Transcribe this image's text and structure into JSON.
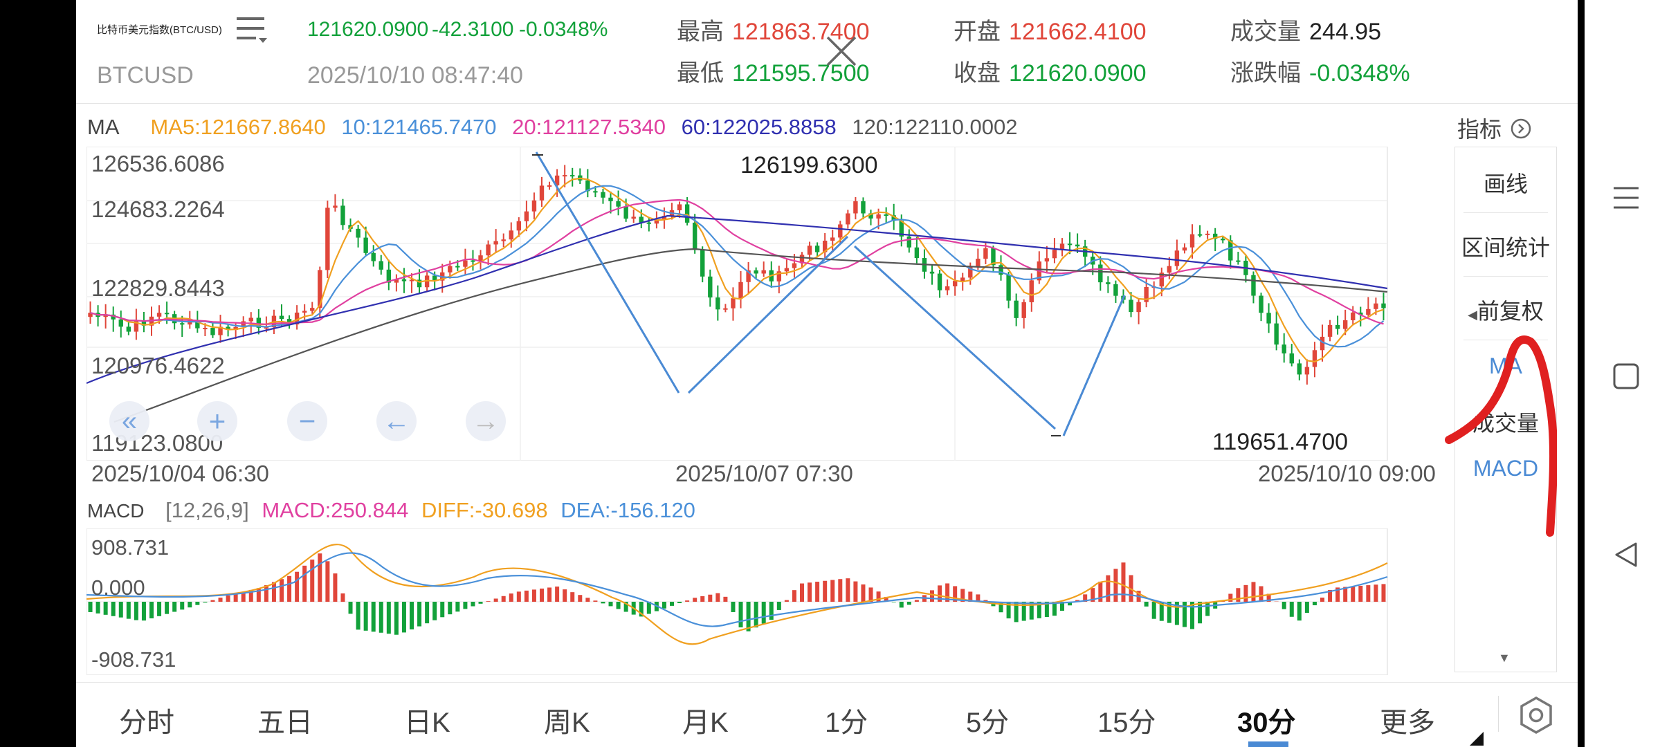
{
  "header": {
    "instrument_name": "比特币美元指数(BTC/USD)",
    "symbol": "BTCUSD",
    "last_price": "121620.0900",
    "change": "-42.3100",
    "change_pct": "-0.0348%",
    "datetime": "2025/10/10 08:47:40",
    "stats": [
      {
        "label": "最高",
        "value": "121863.7400",
        "color": "#e0463a"
      },
      {
        "label": "最低",
        "value": "121595.7500",
        "color": "#12a13a"
      },
      {
        "label": "开盘",
        "value": "121662.4100",
        "color": "#e0463a"
      },
      {
        "label": "收盘",
        "value": "121620.0900",
        "color": "#12a13a"
      },
      {
        "label": "成交量",
        "value": "244.95",
        "color": "#222222"
      },
      {
        "label": "涨跌幅",
        "value": "-0.0348%",
        "color": "#12a13a"
      }
    ]
  },
  "ma_legend": {
    "label": "MA",
    "ma5": "MA5:121667.8640",
    "ma10": "10:121465.7470",
    "ma20": "20:121127.5340",
    "ma60": "60:122025.8858",
    "ma120": "120:122110.0002"
  },
  "colors": {
    "up": "#e0463a",
    "down": "#12a13a",
    "ma5": "#f0a020",
    "ma10": "#4a90d9",
    "ma20": "#e040a0",
    "ma60": "#3030b0",
    "ma120": "#555555",
    "trend": "#4a8ad4",
    "annotation": "#e02020"
  },
  "price_axis": [
    "126536.6086",
    "124683.2264",
    "122829.8443",
    "120976.4622",
    "119123.0800"
  ],
  "time_axis": [
    "2025/10/04 06:30",
    "2025/10/07 07:30",
    "2025/10/10 09:00"
  ],
  "extremes": {
    "high": "126199.6300",
    "low": "119651.4700"
  },
  "macd": {
    "label": "MACD",
    "params": "[12,26,9]",
    "macd": "MACD:250.844",
    "diff": "DIFF:-30.698",
    "dea": "DEA:-156.120",
    "axis": [
      "908.731",
      "0.000",
      "-908.731"
    ]
  },
  "indicator_panel": {
    "title": "指标",
    "items": [
      "画线",
      "区间统计",
      "前复权",
      "MA",
      "成交量",
      "MACD"
    ]
  },
  "tabs": [
    "分时",
    "五日",
    "日K",
    "周K",
    "月K",
    "1分",
    "5分",
    "15分",
    "30分",
    "更多"
  ],
  "active_tab": "30分",
  "chart_nav_buttons": [
    "«",
    "+",
    "−",
    "←",
    "→"
  ]
}
